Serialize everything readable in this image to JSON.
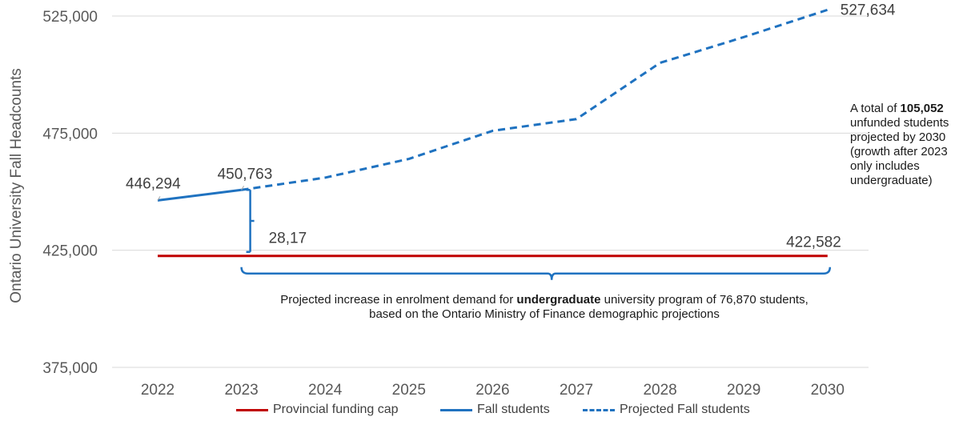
{
  "chart_data": {
    "type": "line",
    "x": [
      "2022",
      "2023",
      "2024",
      "2025",
      "2026",
      "2027",
      "2028",
      "2029",
      "2030"
    ],
    "ylabel": "Ontario University Fall Headcounts",
    "ylim": [
      375000,
      530000
    ],
    "yticks": [
      375000,
      425000,
      475000,
      525000
    ],
    "ytick_labels": [
      "375,000",
      "425,000",
      "475,000",
      "525,000"
    ],
    "grid": "horizontal",
    "legend_position": "bottom",
    "series": [
      {
        "name": "Provincial funding cap",
        "color": "#c00000",
        "style": "solid",
        "values": [
          422582,
          422582,
          422582,
          422582,
          422582,
          422582,
          422582,
          422582,
          422582
        ]
      },
      {
        "name": "Fall students",
        "color": "#1f72c0",
        "style": "solid",
        "values": [
          446294,
          450763,
          null,
          null,
          null,
          null,
          null,
          null,
          null
        ]
      },
      {
        "name": "Projected Fall students",
        "color": "#1f72c0",
        "style": "dashed",
        "values": [
          null,
          450763,
          456000,
          464000,
          476000,
          481000,
          505000,
          516000,
          527634
        ]
      }
    ],
    "data_labels": [
      "446,294",
      "450,763",
      "527,634",
      "422,582",
      "28,17"
    ]
  },
  "annotations": {
    "right_note": {
      "prefix": "A total of ",
      "bold": "105,052",
      "rest": "unfunded students projected by 2030 (growth after 2023 only includes undergraduate)"
    },
    "bottom_note": {
      "prefix": "Projected increase in enrolment demand for ",
      "bold": "undergraduate",
      "rest": " university program of 76,870 students, based on the Ontario Ministry of Finance demographic projections"
    }
  },
  "colors": {
    "blue": "#1f72c0",
    "red": "#c00000",
    "grid": "#d9d9d9"
  }
}
